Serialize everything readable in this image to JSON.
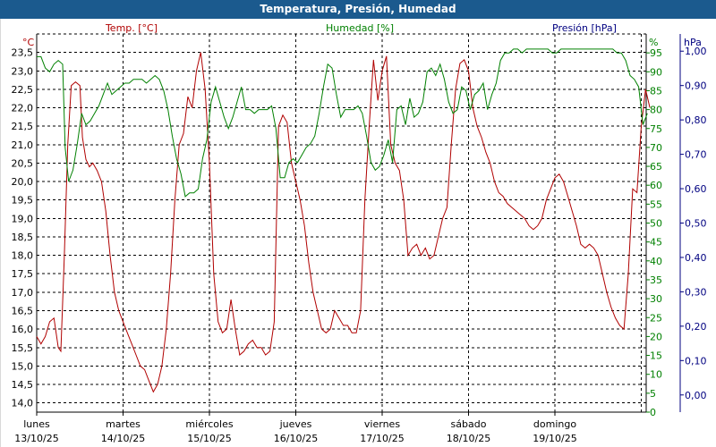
{
  "chart_data": {
    "type": "line",
    "title": "Temperatura, Presión, Humedad",
    "axes": {
      "temperature": {
        "label": "Temp. [°C]",
        "unit": "°C",
        "color": "#b00000",
        "ylim": [
          13.75,
          24.0
        ],
        "ticks": [
          "14,0",
          "14,5",
          "15,0",
          "15,5",
          "16,0",
          "16,5",
          "17,0",
          "17,5",
          "18,0",
          "18,5",
          "19,0",
          "19,5",
          "20,0",
          "20,5",
          "21,0",
          "21,5",
          "22,0",
          "22,5",
          "23,0",
          "23,5"
        ]
      },
      "humidity": {
        "label": "Humedad [%]",
        "unit": "%",
        "color": "#008000",
        "ylim": [
          0,
          100
        ],
        "ticks": [
          "0",
          "5",
          "10",
          "15",
          "20",
          "25",
          "30",
          "35",
          "40",
          "45",
          "50",
          "55",
          "60",
          "65",
          "70",
          "75",
          "80",
          "85",
          "90",
          "95"
        ]
      },
      "pressure": {
        "label": "Presión [hPa]",
        "unit": "hPa",
        "color": "#000080",
        "ylim": [
          -0.05,
          1.05
        ],
        "ticks": [
          "0,00",
          "0,10",
          "0,20",
          "0,30",
          "0,40",
          "0,50",
          "0,60",
          "0,70",
          "0,80",
          "0,90",
          "1,00"
        ]
      }
    },
    "x": {
      "days": [
        {
          "day": "lunes",
          "date": "13/10/25"
        },
        {
          "day": "martes",
          "date": "14/10/25"
        },
        {
          "day": "miércoles",
          "date": "15/10/25"
        },
        {
          "day": "jueves",
          "date": "16/10/25"
        },
        {
          "day": "viernes",
          "date": "17/10/25"
        },
        {
          "day": "sábado",
          "date": "18/10/25"
        },
        {
          "day": "domingo",
          "date": "19/10/25"
        }
      ]
    },
    "grid": true,
    "series": [
      {
        "name": "Temp. [°C]",
        "axis": "temperature",
        "color": "#b00000",
        "points": [
          [
            0.0,
            15.8
          ],
          [
            0.05,
            15.6
          ],
          [
            0.1,
            15.8
          ],
          [
            0.15,
            16.2
          ],
          [
            0.2,
            16.3
          ],
          [
            0.25,
            15.5
          ],
          [
            0.28,
            15.4
          ],
          [
            0.32,
            18.0
          ],
          [
            0.36,
            21.0
          ],
          [
            0.4,
            22.6
          ],
          [
            0.45,
            22.7
          ],
          [
            0.5,
            22.6
          ],
          [
            0.53,
            21.2
          ],
          [
            0.57,
            20.6
          ],
          [
            0.61,
            20.4
          ],
          [
            0.65,
            20.5
          ],
          [
            0.7,
            20.3
          ],
          [
            0.75,
            20.0
          ],
          [
            0.8,
            19.2
          ],
          [
            0.85,
            18.0
          ],
          [
            0.9,
            17.0
          ],
          [
            0.95,
            16.5
          ],
          [
            1.0,
            16.2
          ],
          [
            1.05,
            15.9
          ],
          [
            1.1,
            15.6
          ],
          [
            1.15,
            15.3
          ],
          [
            1.2,
            15.0
          ],
          [
            1.25,
            14.9
          ],
          [
            1.3,
            14.6
          ],
          [
            1.35,
            14.3
          ],
          [
            1.4,
            14.5
          ],
          [
            1.45,
            15.0
          ],
          [
            1.5,
            16.0
          ],
          [
            1.55,
            17.5
          ],
          [
            1.6,
            19.5
          ],
          [
            1.65,
            21.0
          ],
          [
            1.7,
            21.3
          ],
          [
            1.75,
            22.3
          ],
          [
            1.8,
            22.0
          ],
          [
            1.85,
            23.0
          ],
          [
            1.9,
            23.5
          ],
          [
            1.95,
            22.5
          ],
          [
            2.0,
            20.5
          ],
          [
            2.05,
            17.5
          ],
          [
            2.1,
            16.2
          ],
          [
            2.15,
            15.9
          ],
          [
            2.2,
            16.0
          ],
          [
            2.25,
            16.8
          ],
          [
            2.3,
            16.0
          ],
          [
            2.35,
            15.3
          ],
          [
            2.4,
            15.4
          ],
          [
            2.45,
            15.6
          ],
          [
            2.5,
            15.7
          ],
          [
            2.55,
            15.5
          ],
          [
            2.6,
            15.5
          ],
          [
            2.65,
            15.3
          ],
          [
            2.7,
            15.4
          ],
          [
            2.75,
            16.2
          ],
          [
            2.8,
            21.5
          ],
          [
            2.85,
            21.8
          ],
          [
            2.9,
            21.6
          ],
          [
            2.95,
            20.5
          ],
          [
            3.0,
            20.0
          ],
          [
            3.05,
            19.5
          ],
          [
            3.1,
            18.8
          ],
          [
            3.15,
            17.8
          ],
          [
            3.2,
            17.0
          ],
          [
            3.25,
            16.5
          ],
          [
            3.3,
            16.0
          ],
          [
            3.35,
            15.9
          ],
          [
            3.4,
            16.0
          ],
          [
            3.45,
            16.5
          ],
          [
            3.5,
            16.3
          ],
          [
            3.55,
            16.1
          ],
          [
            3.6,
            16.1
          ],
          [
            3.65,
            15.9
          ],
          [
            3.7,
            15.9
          ],
          [
            3.75,
            16.5
          ],
          [
            3.8,
            19.5
          ],
          [
            3.85,
            21.5
          ],
          [
            3.9,
            23.3
          ],
          [
            3.95,
            22.2
          ],
          [
            4.0,
            23.0
          ],
          [
            4.05,
            23.4
          ],
          [
            4.1,
            21.0
          ],
          [
            4.15,
            20.5
          ],
          [
            4.2,
            20.3
          ],
          [
            4.25,
            19.5
          ],
          [
            4.3,
            18.0
          ],
          [
            4.35,
            18.2
          ],
          [
            4.4,
            18.3
          ],
          [
            4.45,
            18.0
          ],
          [
            4.5,
            18.2
          ],
          [
            4.55,
            17.9
          ],
          [
            4.6,
            18.0
          ],
          [
            4.65,
            18.5
          ],
          [
            4.7,
            19.0
          ],
          [
            4.75,
            19.3
          ],
          [
            4.8,
            21.0
          ],
          [
            4.85,
            22.5
          ],
          [
            4.9,
            23.2
          ],
          [
            4.95,
            23.3
          ],
          [
            5.0,
            23.0
          ],
          [
            5.05,
            22.0
          ],
          [
            5.1,
            21.5
          ],
          [
            5.15,
            21.2
          ],
          [
            5.2,
            20.8
          ],
          [
            5.25,
            20.5
          ],
          [
            5.3,
            20.0
          ],
          [
            5.35,
            19.7
          ],
          [
            5.4,
            19.6
          ],
          [
            5.45,
            19.4
          ],
          [
            5.5,
            19.3
          ],
          [
            5.55,
            19.2
          ],
          [
            5.6,
            19.1
          ],
          [
            5.65,
            19.0
          ],
          [
            5.7,
            18.8
          ],
          [
            5.75,
            18.7
          ],
          [
            5.8,
            18.8
          ],
          [
            5.85,
            19.0
          ],
          [
            5.9,
            19.5
          ],
          [
            5.95,
            19.8
          ],
          [
            6.0,
            20.1
          ],
          [
            6.05,
            20.2
          ],
          [
            6.1,
            20.0
          ],
          [
            6.15,
            19.6
          ],
          [
            6.2,
            19.2
          ],
          [
            6.25,
            18.8
          ],
          [
            6.3,
            18.3
          ],
          [
            6.35,
            18.2
          ],
          [
            6.4,
            18.3
          ],
          [
            6.45,
            18.2
          ],
          [
            6.5,
            18.0
          ],
          [
            6.55,
            17.5
          ],
          [
            6.6,
            17.0
          ],
          [
            6.65,
            16.6
          ],
          [
            6.7,
            16.3
          ],
          [
            6.75,
            16.1
          ],
          [
            6.8,
            16.0
          ],
          [
            6.85,
            17.5
          ],
          [
            6.9,
            19.8
          ],
          [
            6.95,
            19.7
          ],
          [
            7.0,
            21.5
          ],
          [
            7.05,
            22.5
          ],
          [
            7.1,
            22.0
          ]
        ]
      },
      {
        "name": "Humedad [%]",
        "axis": "humidity",
        "color": "#008000",
        "points": [
          [
            0.0,
            94
          ],
          [
            0.05,
            94
          ],
          [
            0.1,
            91
          ],
          [
            0.15,
            90
          ],
          [
            0.2,
            92
          ],
          [
            0.25,
            93
          ],
          [
            0.3,
            92
          ],
          [
            0.33,
            70
          ],
          [
            0.37,
            61
          ],
          [
            0.42,
            64
          ],
          [
            0.47,
            71
          ],
          [
            0.52,
            79
          ],
          [
            0.57,
            76
          ],
          [
            0.62,
            77
          ],
          [
            0.67,
            79
          ],
          [
            0.72,
            81
          ],
          [
            0.77,
            84
          ],
          [
            0.82,
            87
          ],
          [
            0.87,
            84
          ],
          [
            0.92,
            85
          ],
          [
            0.97,
            86
          ],
          [
            1.02,
            87
          ],
          [
            1.07,
            87
          ],
          [
            1.12,
            88
          ],
          [
            1.17,
            88
          ],
          [
            1.22,
            88
          ],
          [
            1.27,
            87
          ],
          [
            1.32,
            88
          ],
          [
            1.37,
            89
          ],
          [
            1.42,
            88
          ],
          [
            1.47,
            85
          ],
          [
            1.52,
            80
          ],
          [
            1.57,
            73
          ],
          [
            1.62,
            67
          ],
          [
            1.67,
            63
          ],
          [
            1.72,
            57
          ],
          [
            1.77,
            58
          ],
          [
            1.82,
            58
          ],
          [
            1.87,
            59
          ],
          [
            1.92,
            67
          ],
          [
            1.97,
            72
          ],
          [
            2.02,
            82
          ],
          [
            2.07,
            86
          ],
          [
            2.12,
            82
          ],
          [
            2.17,
            78
          ],
          [
            2.22,
            75
          ],
          [
            2.27,
            78
          ],
          [
            2.32,
            82
          ],
          [
            2.37,
            86
          ],
          [
            2.42,
            80
          ],
          [
            2.47,
            80
          ],
          [
            2.52,
            79
          ],
          [
            2.57,
            80
          ],
          [
            2.62,
            80
          ],
          [
            2.67,
            80
          ],
          [
            2.72,
            81
          ],
          [
            2.77,
            75
          ],
          [
            2.82,
            62
          ],
          [
            2.87,
            62
          ],
          [
            2.92,
            66
          ],
          [
            2.97,
            67
          ],
          [
            3.02,
            66
          ],
          [
            3.07,
            68
          ],
          [
            3.12,
            70
          ],
          [
            3.17,
            71
          ],
          [
            3.22,
            73
          ],
          [
            3.27,
            79
          ],
          [
            3.32,
            86
          ],
          [
            3.37,
            92
          ],
          [
            3.42,
            91
          ],
          [
            3.47,
            84
          ],
          [
            3.52,
            78
          ],
          [
            3.57,
            80
          ],
          [
            3.62,
            80
          ],
          [
            3.67,
            80
          ],
          [
            3.72,
            81
          ],
          [
            3.77,
            79
          ],
          [
            3.82,
            73
          ],
          [
            3.87,
            66
          ],
          [
            3.92,
            64
          ],
          [
            3.97,
            65
          ],
          [
            4.02,
            68
          ],
          [
            4.07,
            72
          ],
          [
            4.12,
            66
          ],
          [
            4.17,
            80
          ],
          [
            4.22,
            81
          ],
          [
            4.27,
            76
          ],
          [
            4.32,
            83
          ],
          [
            4.37,
            78
          ],
          [
            4.42,
            79
          ],
          [
            4.47,
            82
          ],
          [
            4.52,
            90
          ],
          [
            4.57,
            91
          ],
          [
            4.62,
            89
          ],
          [
            4.67,
            92
          ],
          [
            4.72,
            88
          ],
          [
            4.77,
            82
          ],
          [
            4.82,
            79
          ],
          [
            4.87,
            80
          ],
          [
            4.92,
            86
          ],
          [
            4.97,
            85
          ],
          [
            5.02,
            80
          ],
          [
            5.07,
            84
          ],
          [
            5.12,
            85
          ],
          [
            5.17,
            87
          ],
          [
            5.22,
            80
          ],
          [
            5.27,
            84
          ],
          [
            5.32,
            87
          ],
          [
            5.37,
            93
          ],
          [
            5.42,
            95
          ],
          [
            5.47,
            95
          ],
          [
            5.52,
            96
          ],
          [
            5.57,
            96
          ],
          [
            5.62,
            95
          ],
          [
            5.67,
            96
          ],
          [
            5.72,
            96
          ],
          [
            5.77,
            96
          ],
          [
            5.82,
            96
          ],
          [
            5.87,
            96
          ],
          [
            5.92,
            96
          ],
          [
            5.97,
            95
          ],
          [
            6.02,
            95
          ],
          [
            6.07,
            96
          ],
          [
            6.12,
            96
          ],
          [
            6.17,
            96
          ],
          [
            6.22,
            96
          ],
          [
            6.27,
            96
          ],
          [
            6.32,
            96
          ],
          [
            6.37,
            96
          ],
          [
            6.42,
            96
          ],
          [
            6.47,
            96
          ],
          [
            6.52,
            96
          ],
          [
            6.57,
            96
          ],
          [
            6.62,
            96
          ],
          [
            6.67,
            96
          ],
          [
            6.72,
            95
          ],
          [
            6.77,
            95
          ],
          [
            6.82,
            93
          ],
          [
            6.87,
            89
          ],
          [
            6.92,
            88
          ],
          [
            6.97,
            86
          ],
          [
            7.02,
            76
          ],
          [
            7.07,
            79
          ]
        ]
      }
    ]
  }
}
